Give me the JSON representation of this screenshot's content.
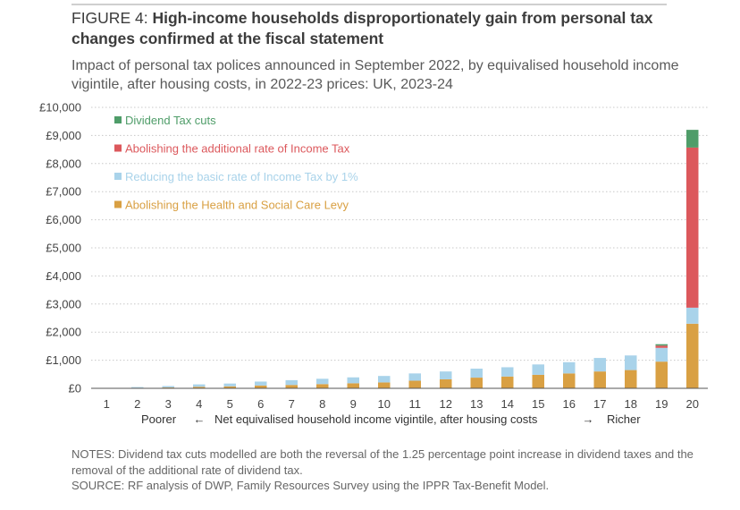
{
  "figure": {
    "label": "FIGURE 4:",
    "title": "High-income households disproportionately gain from personal tax changes confirmed at the fiscal statement",
    "subtitle": "Impact of personal tax polices announced in September 2022, by equivalised household income vigintile, after housing costs, in 2022-23 prices: UK, 2023-24"
  },
  "notes": {
    "notes_text": "NOTES: Dividend tax cuts modelled are both the reversal of the 1.25 percentage point increase in dividend taxes and the removal of the additional rate of dividend tax.",
    "source_text": "SOURCE: RF analysis of DWP, Family Resources Survey using the IPPR Tax-Benefit Model."
  },
  "chart_data": {
    "type": "bar",
    "stacked": true,
    "categories": [
      "1",
      "2",
      "3",
      "4",
      "5",
      "6",
      "7",
      "8",
      "9",
      "10",
      "11",
      "12",
      "13",
      "14",
      "15",
      "16",
      "17",
      "18",
      "19",
      "20"
    ],
    "ylim": [
      0,
      10000
    ],
    "yticks": [
      0,
      1000,
      2000,
      3000,
      4000,
      5000,
      6000,
      7000,
      8000,
      9000,
      10000
    ],
    "ytick_labels": [
      "£0",
      "£1,000",
      "£2,000",
      "£3,000",
      "£4,000",
      "£5,000",
      "£6,000",
      "£7,000",
      "£8,000",
      "£9,000",
      "£10,000"
    ],
    "xlabel_left": "Poorer",
    "xlabel_left_arrow": "←",
    "xlabel": "Net equivalised household income vigintile, after housing costs",
    "xlabel_right_arrow": "→",
    "xlabel_right": "Richer",
    "legend_position": "top-left",
    "series": [
      {
        "name": "Abolishing the Health and Social Care Levy",
        "color": "#d9a043",
        "values": [
          0,
          20,
          30,
          55,
          70,
          100,
          120,
          150,
          180,
          210,
          270,
          320,
          380,
          420,
          480,
          530,
          600,
          650,
          950,
          2300
        ]
      },
      {
        "name": "Reducing the basic rate of Income Tax by 1%",
        "color": "#a9d3ea",
        "values": [
          0,
          25,
          50,
          85,
          100,
          140,
          170,
          190,
          210,
          230,
          260,
          280,
          320,
          330,
          370,
          400,
          480,
          520,
          490,
          570
        ]
      },
      {
        "name": "Abolishing the additional rate of Income Tax",
        "color": "#dc585c",
        "values": [
          0,
          0,
          0,
          0,
          0,
          0,
          0,
          0,
          0,
          0,
          0,
          0,
          0,
          0,
          0,
          0,
          0,
          0,
          80,
          5700
        ]
      },
      {
        "name": "Dividend Tax cuts",
        "color": "#4f9d69",
        "values": [
          0,
          0,
          0,
          0,
          0,
          0,
          0,
          0,
          0,
          0,
          0,
          0,
          0,
          0,
          0,
          0,
          0,
          0,
          50,
          630
        ]
      }
    ]
  }
}
